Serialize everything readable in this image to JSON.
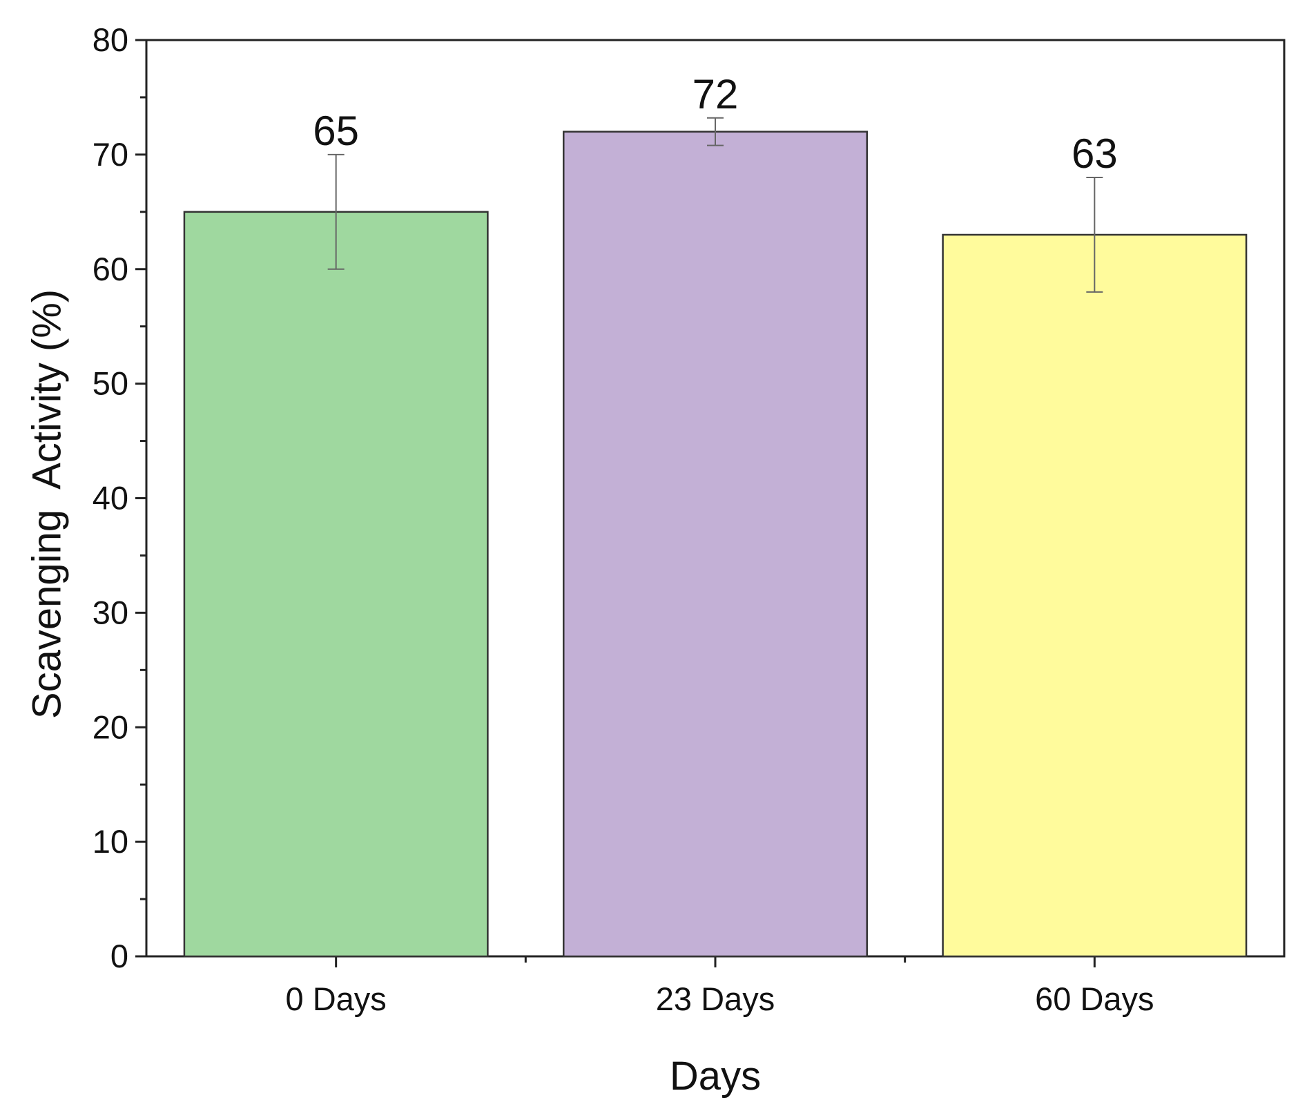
{
  "chart_data": {
    "type": "bar",
    "categories": [
      "0 Days",
      "23 Days",
      "60 Days"
    ],
    "values": [
      65,
      72,
      63
    ],
    "errors": [
      5,
      1.2,
      5
    ],
    "data_labels": [
      "65",
      "72",
      "63"
    ],
    "colors": [
      "#9fd89f",
      "#c3b0d6",
      "#fffb9c"
    ],
    "xlabel": "Days",
    "ylabel": "Scavenging  Activity (%)",
    "ylim": [
      0,
      80
    ],
    "yticks": [
      0,
      10,
      20,
      30,
      40,
      50,
      60,
      70,
      80
    ],
    "ytick_labels": [
      "0",
      "10",
      "20",
      "30",
      "40",
      "50",
      "60",
      "70",
      "80"
    ],
    "grid": false,
    "legend": "none"
  }
}
